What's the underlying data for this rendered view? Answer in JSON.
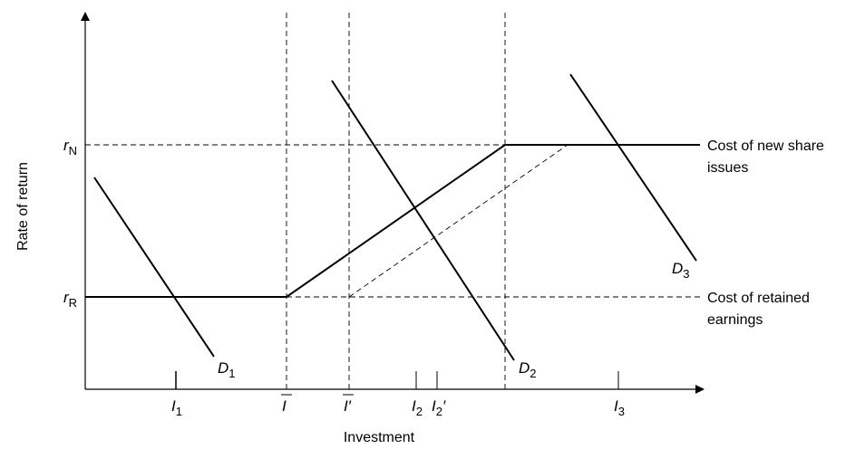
{
  "diagram": {
    "y_axis_label": "Rate of return",
    "x_axis_label": "Investment",
    "y_ticks": {
      "r_N": {
        "main": "r",
        "sub": "N"
      },
      "r_R": {
        "main": "r",
        "sub": "R"
      }
    },
    "x_ticks": {
      "I1": {
        "main": "I",
        "sub": "1"
      },
      "Ibar": {
        "main": "I"
      },
      "Ibar_prime": {
        "main": "I",
        "prime": "′"
      },
      "I2": {
        "main": "I",
        "sub": "2"
      },
      "I2_prime": {
        "main": "I",
        "sub": "2",
        "prime": "′"
      },
      "I3": {
        "main": "I",
        "sub": "3"
      }
    },
    "curves": {
      "D1": {
        "main": "D",
        "sub": "1"
      },
      "D2": {
        "main": "D",
        "sub": "2"
      },
      "D3": {
        "main": "D",
        "sub": "3"
      }
    },
    "right_labels": {
      "new_share_line1": "Cost of new share",
      "new_share_line2": "issues",
      "retained_line1": "Cost of retained",
      "retained_line2": "earnings"
    }
  },
  "colors": {
    "line": "#000000",
    "background": "#ffffff"
  }
}
